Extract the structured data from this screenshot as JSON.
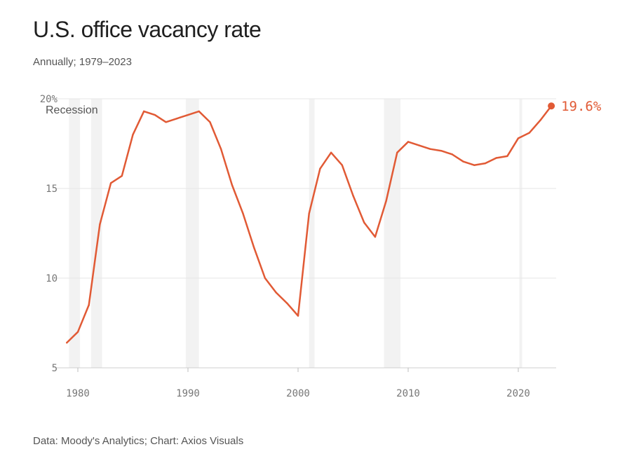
{
  "title": "U.S. office vacancy rate",
  "subtitle": "Annually; 1979–2023",
  "footer": "Data: Moody's Analytics; Chart: Axios Visuals",
  "colors": {
    "line": "#e15a35",
    "recession": "#f2f2f2",
    "grid": "#e6e6e6"
  },
  "chart_data": {
    "type": "line",
    "title": "U.S. office vacancy rate",
    "subtitle": "Annually; 1979–2023",
    "xlabel": "",
    "ylabel": "",
    "xlim": [
      1978,
      2024
    ],
    "ylim": [
      5,
      20
    ],
    "xticks": [
      1980,
      1990,
      2000,
      2010,
      2020
    ],
    "yticks": [
      {
        "value": 20,
        "label": "20%"
      },
      {
        "value": 15,
        "label": "15"
      },
      {
        "value": 10,
        "label": "10"
      },
      {
        "value": 5,
        "label": "5"
      }
    ],
    "grid": true,
    "recession_label": "Recession",
    "recessions": [
      [
        1979.2,
        1980.2
      ],
      [
        1981.2,
        1982.2
      ],
      [
        1989.8,
        1991.0
      ],
      [
        2001.0,
        2001.5
      ],
      [
        2007.8,
        2009.3
      ],
      [
        2020.1,
        2020.35
      ]
    ],
    "series": [
      {
        "x": [
          1979,
          1980,
          1981,
          1982,
          1983,
          1984,
          1985,
          1986,
          1987,
          1988,
          1989,
          1990,
          1991,
          1992,
          1993,
          1994,
          1995,
          1996,
          1997,
          1998,
          1999,
          2000,
          2001,
          2002,
          2003,
          2004,
          2005,
          2006,
          2007,
          2008,
          2009,
          2010,
          2011,
          2012,
          2013,
          2014,
          2015,
          2016,
          2017,
          2018,
          2019,
          2020,
          2021,
          2022,
          2023
        ],
        "values": [
          6.4,
          7.0,
          8.5,
          13.0,
          15.3,
          15.7,
          18.0,
          19.3,
          19.1,
          18.7,
          18.9,
          19.1,
          19.3,
          18.7,
          17.2,
          15.2,
          13.6,
          11.7,
          10.0,
          9.2,
          8.6,
          7.9,
          13.6,
          16.1,
          17.0,
          16.3,
          14.6,
          13.1,
          12.3,
          14.3,
          17.0,
          17.6,
          17.4,
          17.2,
          17.1,
          16.9,
          16.5,
          16.3,
          16.4,
          16.7,
          16.8,
          17.8,
          18.1,
          18.8,
          19.6
        ]
      }
    ],
    "end_label": "19.6%"
  }
}
